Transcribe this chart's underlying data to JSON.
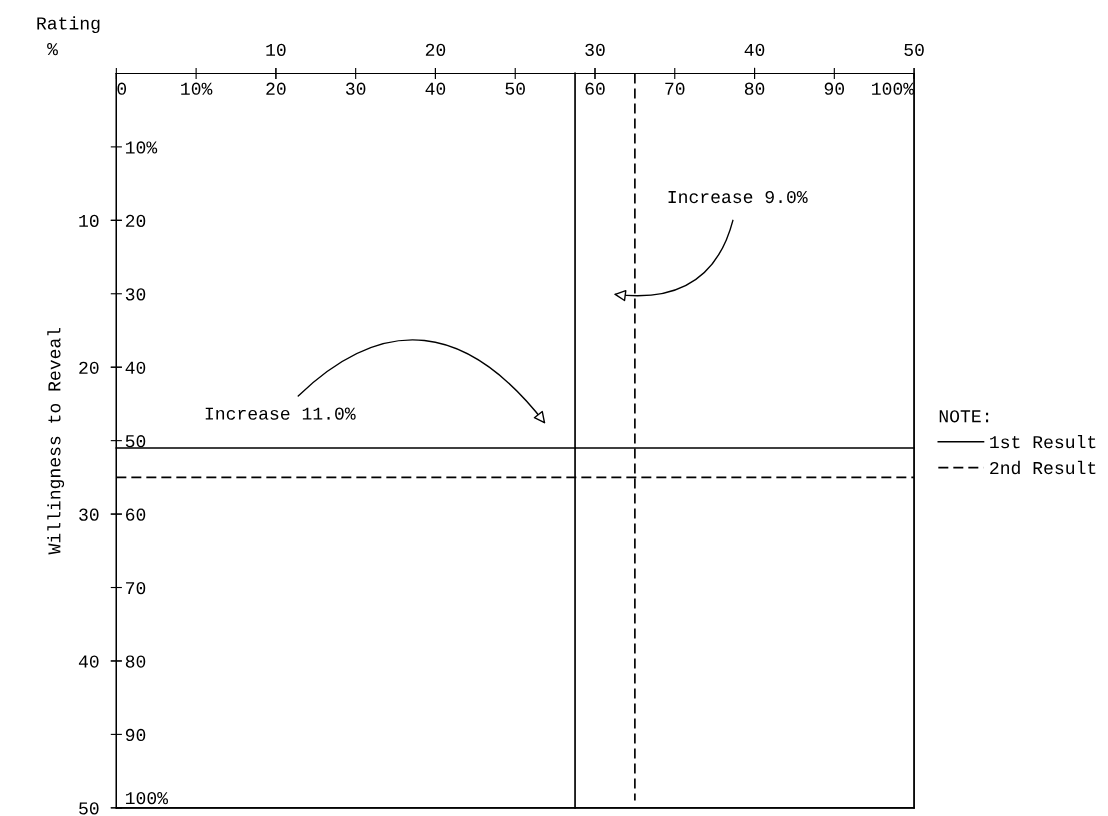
{
  "chart_data": {
    "type": "line",
    "xlabel": "%",
    "x2label": "Rating",
    "ylabel": "Willingness to Reveal",
    "xlim": [
      0,
      100
    ],
    "xticks": [
      0,
      {
        "value": 10,
        "label": "10%"
      },
      20,
      30,
      40,
      50,
      60,
      70,
      80,
      90,
      {
        "value": 100,
        "label": "100%"
      }
    ],
    "x2lim": [
      0,
      50
    ],
    "x2ticks": [
      10,
      20,
      30,
      40,
      50
    ],
    "y2lim": [
      100,
      0
    ],
    "y2ticks": [
      {
        "value": 10,
        "label": "10%"
      },
      20,
      30,
      40,
      50,
      60,
      70,
      80,
      90,
      {
        "value": 100,
        "label": "100%"
      }
    ],
    "ylim": [
      50,
      0
    ],
    "yticks": [
      10,
      20,
      30,
      40,
      50
    ],
    "series": [
      {
        "name": "1st Result",
        "color": "#000000",
        "line_style": "solid",
        "axis": "y2",
        "x": [
          57.5,
          57.5,
          null,
          0,
          100
        ],
        "values": [
          0,
          100,
          null,
          51,
          51
        ]
      },
      {
        "name": "2nd Result",
        "color": "#000000",
        "line_style": "dashed",
        "axis": "y2",
        "x": [
          65,
          65,
          null,
          0,
          100
        ],
        "values": [
          0,
          99,
          null,
          55,
          55
        ]
      }
    ],
    "annotations": [
      "Increase 9.0%",
      "Increase 11.0%"
    ],
    "legend": "right",
    "legend_title": "NOTE:",
    "grid": false
  }
}
